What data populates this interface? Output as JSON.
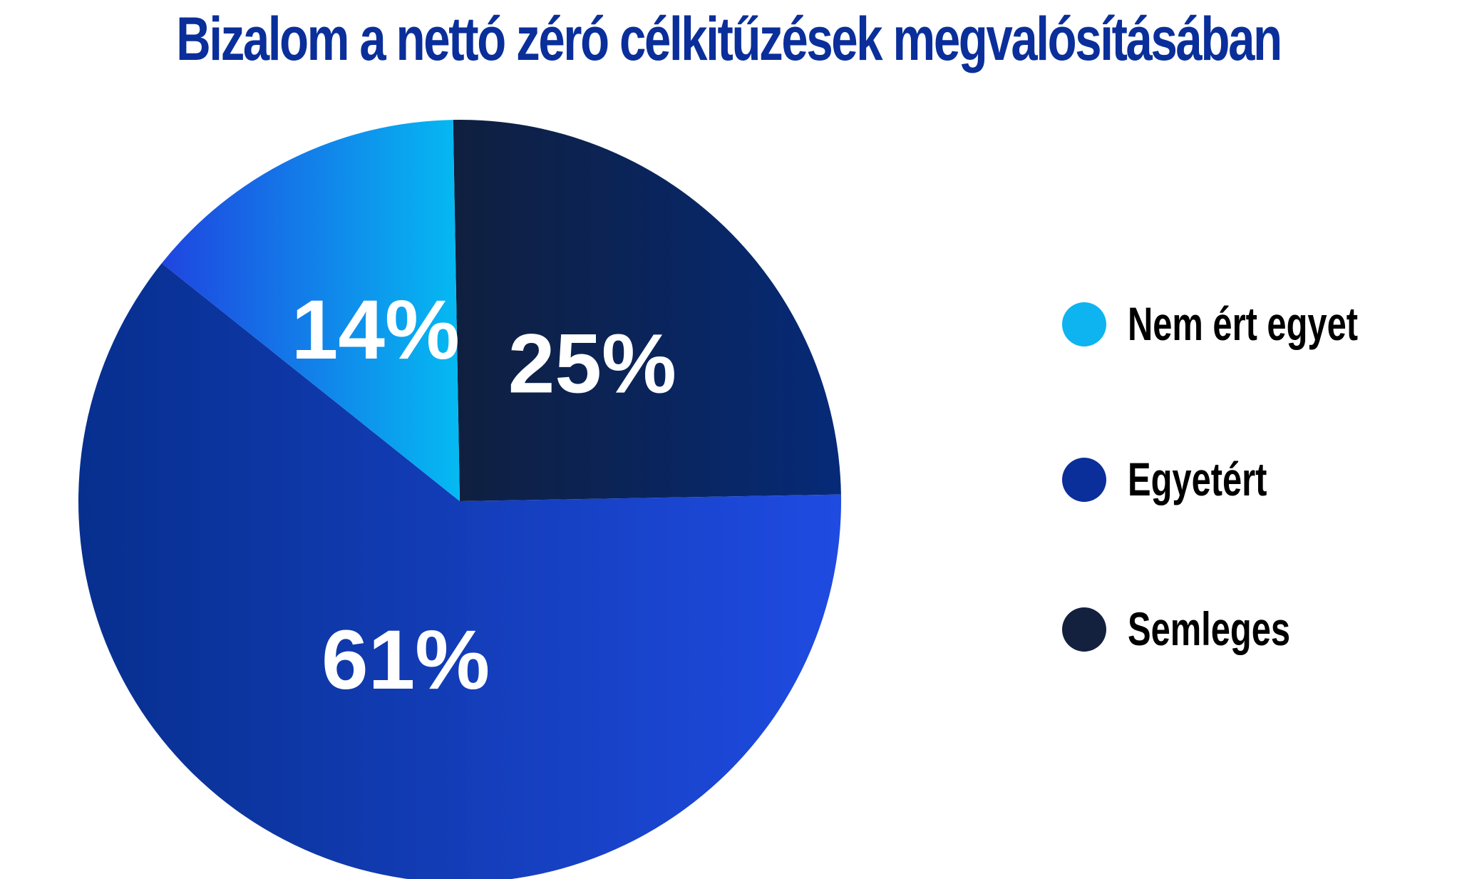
{
  "title": "Bizalom a nettó zéró célkitűzések megvalósításában",
  "chart_data": {
    "type": "pie",
    "title": "Bizalom a nettó zéró célkitűzések megvalósításában",
    "slices": [
      {
        "label": "Semleges",
        "value": 25,
        "display": "25%",
        "color": "#13213f"
      },
      {
        "label": "Egyetért",
        "value": 61,
        "display": "61%",
        "color": "#143ab5"
      },
      {
        "label": "Nem ért egyet",
        "value": 14,
        "display": "14%",
        "color": "#0aa3ea"
      }
    ],
    "legend": {
      "position": "right",
      "items": [
        {
          "label": "Nem ért egyet",
          "color": "#0db4f0"
        },
        {
          "label": "Egyetért",
          "color": "#0a2f9a"
        },
        {
          "label": "Semleges",
          "color": "#13213f"
        }
      ]
    }
  }
}
